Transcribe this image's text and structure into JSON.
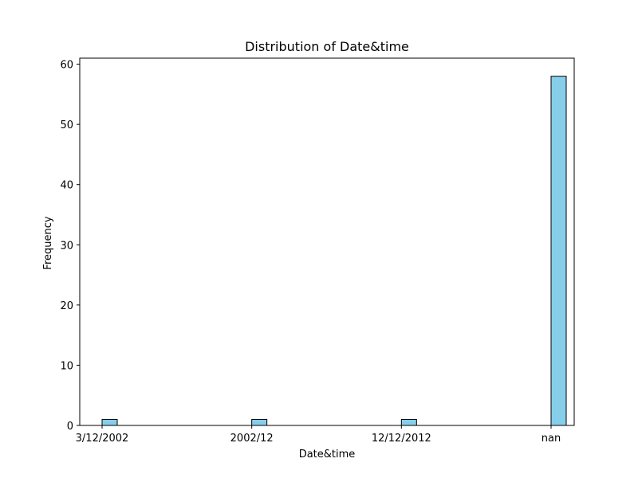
{
  "chart_data": {
    "type": "bar",
    "title": "Distribution of Date&time",
    "xlabel": "Date&time",
    "ylabel": "Frequency",
    "categories": [
      "3/12/2002",
      "2002/12",
      "12/12/2012",
      "nan"
    ],
    "values": [
      1,
      1,
      1,
      58
    ],
    "ylim": [
      0,
      61
    ],
    "yticks": [
      0,
      10,
      20,
      30,
      40,
      50,
      60
    ],
    "bar_color": "#87ceeb",
    "edge_color": "#000000",
    "grid": false,
    "legend": "none"
  }
}
